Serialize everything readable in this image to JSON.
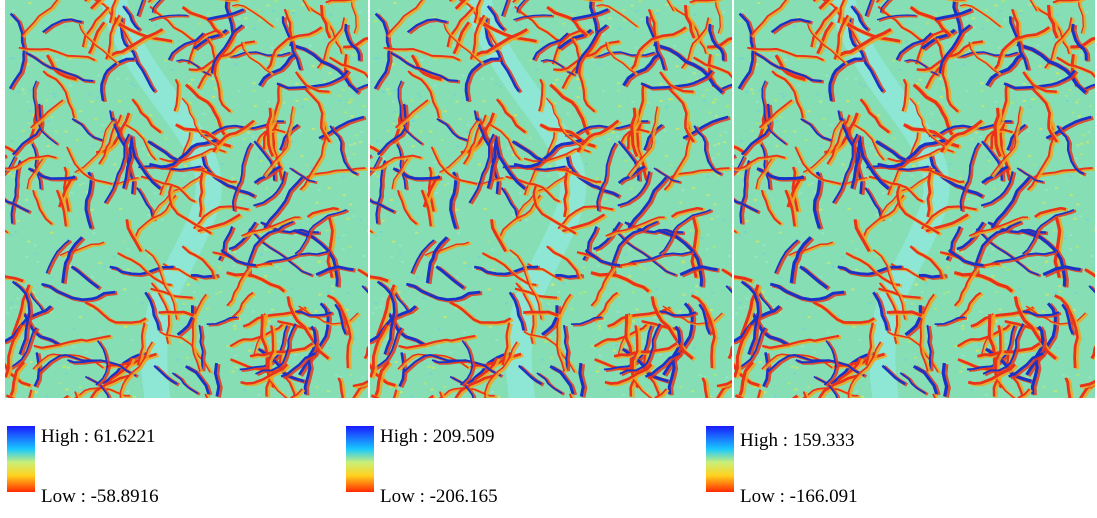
{
  "panels": [
    {
      "legend": {
        "high": "High : 61.6221",
        "low": "Low : -58.8916"
      }
    },
    {
      "legend": {
        "high": "High : 209.509",
        "low": "Low : -206.165"
      }
    },
    {
      "legend": {
        "high": "High : 159.333",
        "low": "Low : -166.091"
      }
    }
  ]
}
